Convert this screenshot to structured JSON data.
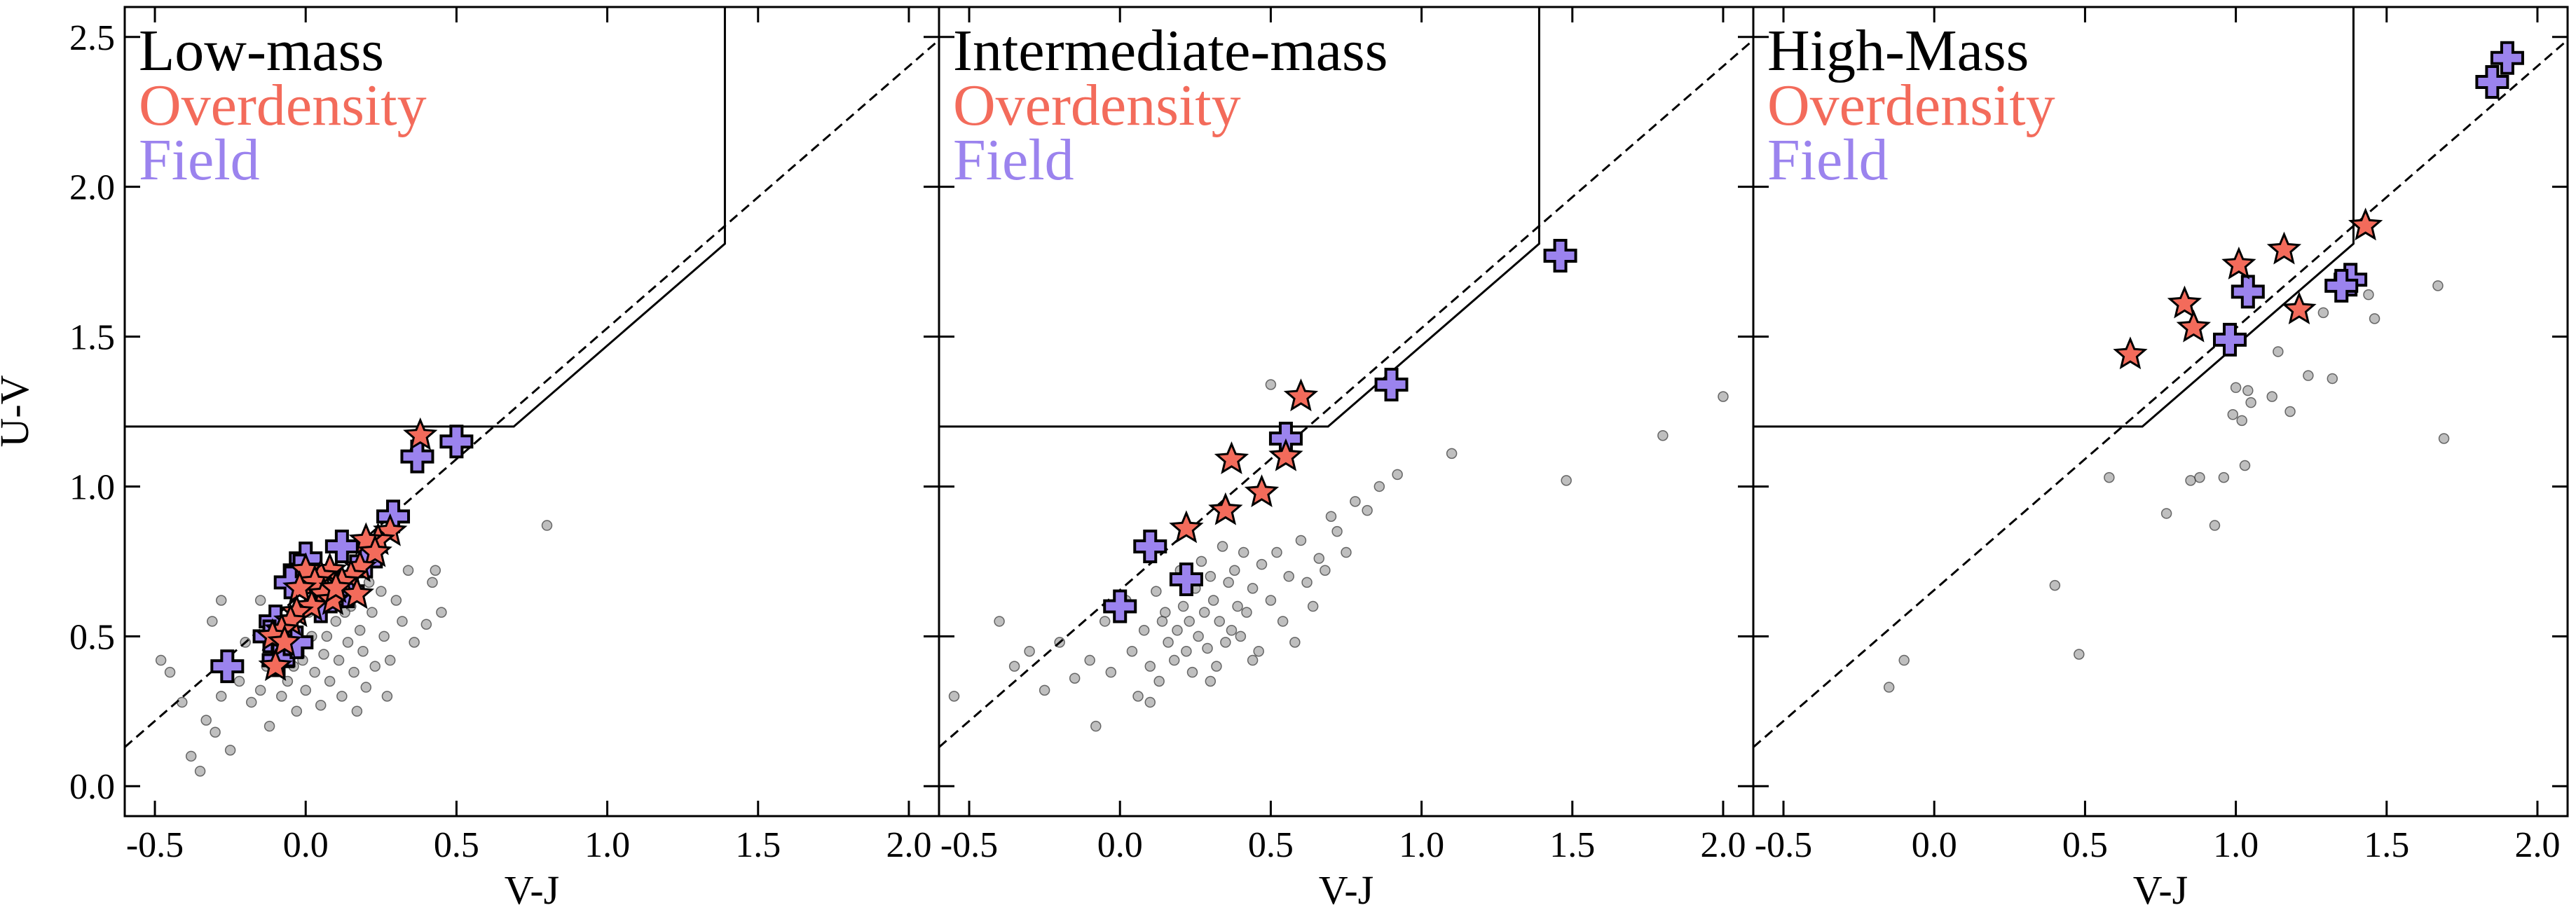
{
  "chart_data": {
    "type": "scatter",
    "xlabel": "V-J",
    "ylabel": "U-V",
    "xlim": [
      -0.6,
      2.1
    ],
    "ylim": [
      -0.1,
      2.6
    ],
    "x_ticks": [
      -0.5,
      0.0,
      0.5,
      1.0,
      1.5,
      2.0
    ],
    "x_tick_labels": [
      "-0.5",
      "0.0",
      "0.5",
      "1.0",
      "1.5",
      "2.0"
    ],
    "y_ticks": [
      0.0,
      0.5,
      1.0,
      1.5,
      2.0,
      2.5
    ],
    "y_tick_labels": [
      "0.0",
      "0.5",
      "1.0",
      "1.5",
      "2.0",
      "2.5"
    ],
    "colors": {
      "overdensity": "#f36b5b",
      "field": "#9b83ee",
      "background": "#8a8a8a",
      "lines": "#000000"
    },
    "quiescent_box": {
      "polyline": [
        [
          -0.6,
          1.2
        ],
        [
          0.69,
          1.2
        ],
        [
          1.39,
          1.81
        ],
        [
          1.39,
          2.6
        ]
      ]
    },
    "dashed_line": {
      "points": [
        [
          -0.6,
          0.13
        ],
        [
          2.1,
          2.49
        ]
      ]
    },
    "legend": {
      "series": [
        "Overdensity",
        "Field"
      ]
    },
    "panels": [
      {
        "title": "Low-mass",
        "overdensity": [
          [
            0.38,
            1.17
          ],
          [
            0.28,
            0.85
          ],
          [
            0.24,
            0.82
          ],
          [
            0.2,
            0.82
          ],
          [
            0.23,
            0.78
          ],
          [
            0.18,
            0.73
          ],
          [
            0.15,
            0.7
          ],
          [
            0.12,
            0.68
          ],
          [
            0.17,
            0.64
          ],
          [
            0.08,
            0.72
          ],
          [
            0.05,
            0.7
          ],
          [
            0.0,
            0.72
          ],
          [
            0.03,
            0.68
          ],
          [
            -0.02,
            0.66
          ],
          [
            0.06,
            0.64
          ],
          [
            0.09,
            0.62
          ],
          [
            0.02,
            0.6
          ],
          [
            -0.03,
            0.58
          ],
          [
            -0.05,
            0.55
          ],
          [
            -0.08,
            0.52
          ],
          [
            -0.11,
            0.5
          ],
          [
            -0.07,
            0.48
          ],
          [
            -0.1,
            0.4
          ],
          [
            0.1,
            0.66
          ]
        ],
        "field": [
          [
            0.5,
            1.15
          ],
          [
            0.37,
            1.1
          ],
          [
            0.29,
            0.9
          ],
          [
            0.12,
            0.8
          ],
          [
            0.2,
            0.75
          ],
          [
            0.0,
            0.76
          ],
          [
            -0.02,
            0.72
          ],
          [
            0.14,
            0.65
          ],
          [
            -0.05,
            0.68
          ],
          [
            -0.1,
            0.55
          ],
          [
            -0.12,
            0.5
          ],
          [
            -0.06,
            0.45
          ],
          [
            -0.09,
            0.42
          ],
          [
            -0.26,
            0.4
          ],
          [
            0.05,
            0.6
          ],
          [
            -0.03,
            0.48
          ]
        ],
        "background": [
          [
            -0.48,
            0.42
          ],
          [
            -0.45,
            0.38
          ],
          [
            -0.41,
            0.28
          ],
          [
            -0.38,
            0.1
          ],
          [
            -0.35,
            0.05
          ],
          [
            -0.33,
            0.22
          ],
          [
            -0.3,
            0.18
          ],
          [
            -0.28,
            0.3
          ],
          [
            -0.25,
            0.12
          ],
          [
            -0.22,
            0.35
          ],
          [
            -0.31,
            0.55
          ],
          [
            -0.28,
            0.62
          ],
          [
            -0.2,
            0.48
          ],
          [
            -0.18,
            0.28
          ],
          [
            -0.15,
            0.32
          ],
          [
            -0.13,
            0.4
          ],
          [
            -0.12,
            0.2
          ],
          [
            -0.1,
            0.45
          ],
          [
            -0.08,
            0.3
          ],
          [
            -0.06,
            0.35
          ],
          [
            -0.05,
            0.52
          ],
          [
            -0.03,
            0.25
          ],
          [
            -0.01,
            0.42
          ],
          [
            0.0,
            0.32
          ],
          [
            0.02,
            0.5
          ],
          [
            0.03,
            0.38
          ],
          [
            0.05,
            0.27
          ],
          [
            0.06,
            0.44
          ],
          [
            0.08,
            0.35
          ],
          [
            0.1,
            0.55
          ],
          [
            0.11,
            0.42
          ],
          [
            0.12,
            0.3
          ],
          [
            0.14,
            0.48
          ],
          [
            0.15,
            0.6
          ],
          [
            0.16,
            0.38
          ],
          [
            0.18,
            0.52
          ],
          [
            0.19,
            0.45
          ],
          [
            0.2,
            0.33
          ],
          [
            0.22,
            0.58
          ],
          [
            0.23,
            0.4
          ],
          [
            0.25,
            0.65
          ],
          [
            0.26,
            0.5
          ],
          [
            0.28,
            0.42
          ],
          [
            0.3,
            0.62
          ],
          [
            0.32,
            0.55
          ],
          [
            0.34,
            0.72
          ],
          [
            0.36,
            0.48
          ],
          [
            0.4,
            0.54
          ],
          [
            0.42,
            0.68
          ],
          [
            0.45,
            0.58
          ],
          [
            0.43,
            0.72
          ],
          [
            0.8,
            0.87
          ],
          [
            -0.15,
            0.62
          ],
          [
            0.01,
            0.58
          ],
          [
            0.07,
            0.5
          ],
          [
            -0.04,
            0.4
          ],
          [
            0.17,
            0.25
          ],
          [
            0.27,
            0.3
          ],
          [
            0.13,
            0.58
          ],
          [
            0.21,
            0.68
          ]
        ]
      },
      {
        "title": "Intermediate-mass",
        "overdensity": [
          [
            0.6,
            1.3
          ],
          [
            0.55,
            1.1
          ],
          [
            0.37,
            1.09
          ],
          [
            0.47,
            0.98
          ],
          [
            0.35,
            0.92
          ],
          [
            0.22,
            0.86
          ]
        ],
        "field": [
          [
            1.46,
            1.77
          ],
          [
            0.9,
            1.34
          ],
          [
            0.55,
            1.16
          ],
          [
            0.1,
            0.8
          ],
          [
            0.22,
            0.69
          ],
          [
            0.0,
            0.6
          ]
        ],
        "background": [
          [
            -0.55,
            0.3
          ],
          [
            -0.4,
            0.55
          ],
          [
            -0.35,
            0.4
          ],
          [
            -0.3,
            0.45
          ],
          [
            -0.25,
            0.32
          ],
          [
            -0.2,
            0.48
          ],
          [
            -0.15,
            0.36
          ],
          [
            -0.1,
            0.42
          ],
          [
            -0.08,
            0.2
          ],
          [
            -0.05,
            0.55
          ],
          [
            -0.03,
            0.38
          ],
          [
            0.02,
            0.62
          ],
          [
            0.04,
            0.45
          ],
          [
            0.06,
            0.3
          ],
          [
            0.08,
            0.52
          ],
          [
            0.1,
            0.4
          ],
          [
            0.12,
            0.65
          ],
          [
            0.13,
            0.35
          ],
          [
            0.15,
            0.58
          ],
          [
            0.16,
            0.48
          ],
          [
            0.18,
            0.42
          ],
          [
            0.19,
            0.52
          ],
          [
            0.2,
            0.72
          ],
          [
            0.21,
            0.6
          ],
          [
            0.22,
            0.45
          ],
          [
            0.23,
            0.55
          ],
          [
            0.24,
            0.38
          ],
          [
            0.25,
            0.66
          ],
          [
            0.26,
            0.5
          ],
          [
            0.27,
            0.75
          ],
          [
            0.28,
            0.58
          ],
          [
            0.29,
            0.46
          ],
          [
            0.3,
            0.7
          ],
          [
            0.31,
            0.62
          ],
          [
            0.32,
            0.4
          ],
          [
            0.33,
            0.55
          ],
          [
            0.34,
            0.8
          ],
          [
            0.35,
            0.48
          ],
          [
            0.36,
            0.68
          ],
          [
            0.37,
            0.52
          ],
          [
            0.38,
            0.72
          ],
          [
            0.39,
            0.6
          ],
          [
            0.4,
            0.5
          ],
          [
            0.41,
            0.78
          ],
          [
            0.42,
            0.58
          ],
          [
            0.44,
            0.66
          ],
          [
            0.46,
            0.45
          ],
          [
            0.47,
            0.74
          ],
          [
            0.5,
            0.62
          ],
          [
            0.52,
            0.78
          ],
          [
            0.54,
            0.55
          ],
          [
            0.56,
            0.7
          ],
          [
            0.58,
            0.48
          ],
          [
            0.6,
            0.82
          ],
          [
            0.62,
            0.68
          ],
          [
            0.64,
            0.6
          ],
          [
            0.66,
            0.76
          ],
          [
            0.68,
            0.72
          ],
          [
            0.7,
            0.9
          ],
          [
            0.72,
            0.85
          ],
          [
            0.75,
            0.78
          ],
          [
            0.78,
            0.95
          ],
          [
            0.82,
            0.92
          ],
          [
            0.86,
            1.0
          ],
          [
            0.92,
            1.04
          ],
          [
            1.1,
            1.11
          ],
          [
            1.8,
            1.17
          ],
          [
            2.0,
            1.3
          ],
          [
            1.48,
            1.02
          ],
          [
            0.5,
            1.34
          ],
          [
            0.14,
            0.55
          ],
          [
            0.3,
            0.35
          ],
          [
            0.44,
            0.42
          ],
          [
            0.1,
            0.28
          ]
        ],
        "background_note": ""
      },
      {
        "title": "High-Mass",
        "overdensity": [
          [
            1.43,
            1.87
          ],
          [
            1.16,
            1.79
          ],
          [
            1.01,
            1.74
          ],
          [
            0.83,
            1.61
          ],
          [
            0.86,
            1.53
          ],
          [
            1.21,
            1.59
          ],
          [
            0.65,
            1.44
          ]
        ],
        "field": [
          [
            1.9,
            2.43
          ],
          [
            1.85,
            2.35
          ],
          [
            1.04,
            1.65
          ],
          [
            1.38,
            1.69
          ],
          [
            1.35,
            1.67
          ],
          [
            0.98,
            1.49
          ]
        ],
        "background": [
          [
            -0.15,
            0.33
          ],
          [
            -0.1,
            0.42
          ],
          [
            0.4,
            0.67
          ],
          [
            0.48,
            0.44
          ],
          [
            0.58,
            1.03
          ],
          [
            0.77,
            0.91
          ],
          [
            0.85,
            1.02
          ],
          [
            0.88,
            1.03
          ],
          [
            0.93,
            0.87
          ],
          [
            0.96,
            1.03
          ],
          [
            0.99,
            1.24
          ],
          [
            1.0,
            1.33
          ],
          [
            1.02,
            1.22
          ],
          [
            1.03,
            1.07
          ],
          [
            1.04,
            1.32
          ],
          [
            1.12,
            1.3
          ],
          [
            1.14,
            1.45
          ],
          [
            1.18,
            1.25
          ],
          [
            1.24,
            1.37
          ],
          [
            1.29,
            1.58
          ],
          [
            1.32,
            1.36
          ],
          [
            1.44,
            1.64
          ],
          [
            1.46,
            1.56
          ],
          [
            1.67,
            1.67
          ],
          [
            1.69,
            1.16
          ],
          [
            1.05,
            1.28
          ]
        ]
      }
    ]
  }
}
